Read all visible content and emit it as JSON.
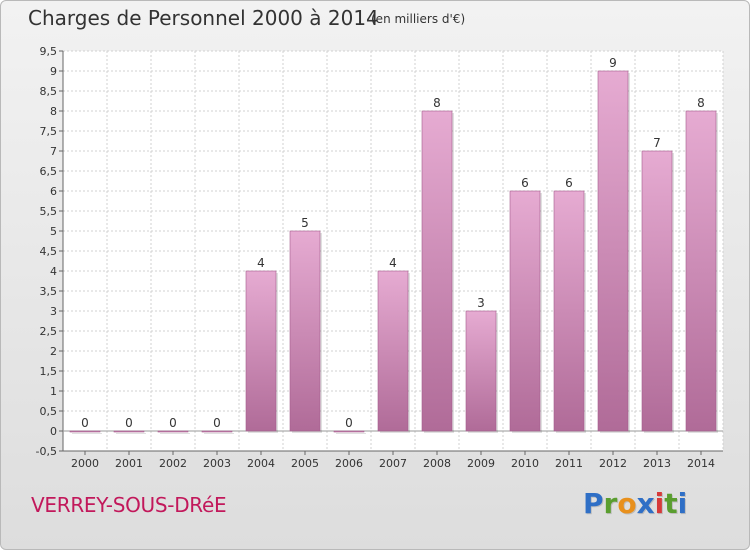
{
  "title": "Charges de Personnel 2000 à 2014",
  "subtitle": "(en milliers d'€)",
  "place": "VERREY-SOUS-DRéE",
  "logo": {
    "letters": [
      "P",
      "r",
      "o",
      "x",
      "i",
      "t",
      "i"
    ],
    "colors": [
      "#2f6fc6",
      "#5a9e2f",
      "#e8901c",
      "#2f6fc6",
      "#d63a3a",
      "#5a9e2f",
      "#2f6fc6"
    ]
  },
  "colors": {
    "bar_light": "#e6abd2",
    "bar_dark": "#b06b98",
    "grid": "#d0d0d0"
  },
  "chart_data": {
    "type": "bar",
    "categories": [
      "2000",
      "2001",
      "2002",
      "2003",
      "2004",
      "2005",
      "2006",
      "2007",
      "2008",
      "2009",
      "2010",
      "2011",
      "2012",
      "2013",
      "2014"
    ],
    "values": [
      0,
      0,
      0,
      0,
      4,
      5,
      0,
      4,
      8,
      3,
      6,
      6,
      9,
      7,
      8
    ],
    "data_labels": [
      "0",
      "0",
      "0",
      "0",
      "4",
      "5",
      "0",
      "4",
      "8",
      "3",
      "6",
      "6",
      "9",
      "7",
      "8"
    ],
    "y_ticks": [
      "-0,5",
      "0",
      "0,5",
      "1",
      "1,5",
      "2",
      "2,5",
      "3",
      "3,5",
      "4",
      "4,5",
      "5",
      "5,5",
      "6",
      "6,5",
      "7",
      "7,5",
      "8",
      "8,5",
      "9",
      "9,5"
    ],
    "ylim": [
      -0.5,
      9.5
    ],
    "grid": true,
    "legend": "none"
  }
}
